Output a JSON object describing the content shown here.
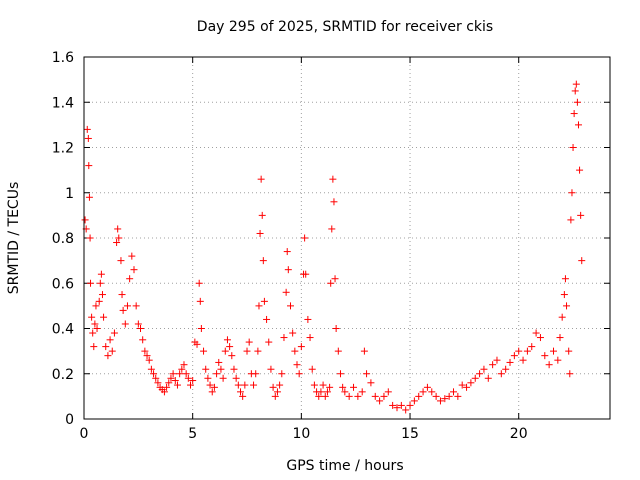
{
  "chart_data": {
    "type": "scatter",
    "title": "Day 295 of 2025, SRMTID for receiver ckis",
    "xlabel": "GPS time / hours",
    "ylabel": "SRMTID / TECUs",
    "xlim": [
      0,
      24.2
    ],
    "ylim": [
      0,
      1.6
    ],
    "xticks": [
      0,
      5,
      10,
      15,
      20
    ],
    "xtick_labels": [
      "0",
      "5",
      "10",
      "15",
      "20"
    ],
    "yticks": [
      0,
      0.2,
      0.4,
      0.6,
      0.8,
      1.0,
      1.2,
      1.4,
      1.6
    ],
    "ytick_labels": [
      "0",
      "0.2",
      "0.4",
      "0.6",
      "0.8",
      "1",
      "1.2",
      "1.4",
      "1.6"
    ],
    "grid": true,
    "marker": "+",
    "color": "#ff0000",
    "series": [
      {
        "name": "SRMTID",
        "points": [
          [
            0.05,
            0.88
          ],
          [
            0.1,
            0.84
          ],
          [
            0.15,
            1.28
          ],
          [
            0.2,
            1.24
          ],
          [
            0.22,
            1.12
          ],
          [
            0.25,
            0.98
          ],
          [
            0.28,
            0.8
          ],
          [
            0.3,
            0.6
          ],
          [
            0.35,
            0.45
          ],
          [
            0.4,
            0.38
          ],
          [
            0.45,
            0.32
          ],
          [
            0.5,
            0.42
          ],
          [
            0.55,
            0.5
          ],
          [
            0.6,
            0.4
          ],
          [
            0.7,
            0.52
          ],
          [
            0.75,
            0.6
          ],
          [
            0.8,
            0.64
          ],
          [
            0.85,
            0.55
          ],
          [
            0.9,
            0.45
          ],
          [
            1.0,
            0.32
          ],
          [
            1.1,
            0.28
          ],
          [
            1.2,
            0.35
          ],
          [
            1.3,
            0.3
          ],
          [
            1.4,
            0.38
          ],
          [
            1.5,
            0.78
          ],
          [
            1.55,
            0.84
          ],
          [
            1.6,
            0.8
          ],
          [
            1.7,
            0.7
          ],
          [
            1.75,
            0.55
          ],
          [
            1.8,
            0.48
          ],
          [
            1.9,
            0.42
          ],
          [
            2.0,
            0.5
          ],
          [
            2.1,
            0.62
          ],
          [
            2.2,
            0.72
          ],
          [
            2.3,
            0.66
          ],
          [
            2.4,
            0.5
          ],
          [
            2.5,
            0.42
          ],
          [
            2.6,
            0.4
          ],
          [
            2.7,
            0.35
          ],
          [
            2.8,
            0.3
          ],
          [
            2.9,
            0.28
          ],
          [
            3.0,
            0.26
          ],
          [
            3.1,
            0.22
          ],
          [
            3.2,
            0.2
          ],
          [
            3.3,
            0.18
          ],
          [
            3.4,
            0.16
          ],
          [
            3.5,
            0.14
          ],
          [
            3.6,
            0.13
          ],
          [
            3.7,
            0.12
          ],
          [
            3.8,
            0.14
          ],
          [
            3.9,
            0.16
          ],
          [
            4.0,
            0.18
          ],
          [
            4.1,
            0.2
          ],
          [
            4.2,
            0.17
          ],
          [
            4.3,
            0.15
          ],
          [
            4.4,
            0.2
          ],
          [
            4.5,
            0.22
          ],
          [
            4.6,
            0.24
          ],
          [
            4.7,
            0.2
          ],
          [
            4.8,
            0.18
          ],
          [
            4.9,
            0.15
          ],
          [
            5.0,
            0.17
          ],
          [
            5.1,
            0.34
          ],
          [
            5.2,
            0.33
          ],
          [
            5.3,
            0.6
          ],
          [
            5.35,
            0.52
          ],
          [
            5.4,
            0.4
          ],
          [
            5.5,
            0.3
          ],
          [
            5.6,
            0.22
          ],
          [
            5.7,
            0.18
          ],
          [
            5.8,
            0.15
          ],
          [
            5.9,
            0.12
          ],
          [
            6.0,
            0.14
          ],
          [
            6.1,
            0.2
          ],
          [
            6.2,
            0.25
          ],
          [
            6.3,
            0.22
          ],
          [
            6.4,
            0.18
          ],
          [
            6.5,
            0.3
          ],
          [
            6.6,
            0.35
          ],
          [
            6.7,
            0.32
          ],
          [
            6.8,
            0.28
          ],
          [
            6.9,
            0.22
          ],
          [
            7.0,
            0.18
          ],
          [
            7.1,
            0.15
          ],
          [
            7.2,
            0.12
          ],
          [
            7.3,
            0.1
          ],
          [
            7.4,
            0.15
          ],
          [
            7.5,
            0.3
          ],
          [
            7.6,
            0.34
          ],
          [
            7.7,
            0.2
          ],
          [
            7.8,
            0.15
          ],
          [
            7.9,
            0.2
          ],
          [
            8.0,
            0.3
          ],
          [
            8.05,
            0.5
          ],
          [
            8.1,
            0.82
          ],
          [
            8.15,
            1.06
          ],
          [
            8.2,
            0.9
          ],
          [
            8.25,
            0.7
          ],
          [
            8.3,
            0.52
          ],
          [
            8.4,
            0.44
          ],
          [
            8.5,
            0.34
          ],
          [
            8.6,
            0.22
          ],
          [
            8.7,
            0.14
          ],
          [
            8.8,
            0.1
          ],
          [
            8.9,
            0.12
          ],
          [
            9.0,
            0.15
          ],
          [
            9.1,
            0.2
          ],
          [
            9.2,
            0.36
          ],
          [
            9.3,
            0.56
          ],
          [
            9.35,
            0.74
          ],
          [
            9.4,
            0.66
          ],
          [
            9.5,
            0.5
          ],
          [
            9.6,
            0.38
          ],
          [
            9.7,
            0.3
          ],
          [
            9.8,
            0.24
          ],
          [
            9.9,
            0.2
          ],
          [
            10.0,
            0.32
          ],
          [
            10.1,
            0.64
          ],
          [
            10.15,
            0.8
          ],
          [
            10.2,
            0.64
          ],
          [
            10.3,
            0.44
          ],
          [
            10.4,
            0.36
          ],
          [
            10.5,
            0.22
          ],
          [
            10.6,
            0.15
          ],
          [
            10.7,
            0.12
          ],
          [
            10.8,
            0.1
          ],
          [
            10.9,
            0.12
          ],
          [
            11.0,
            0.15
          ],
          [
            11.1,
            0.1
          ],
          [
            11.2,
            0.12
          ],
          [
            11.3,
            0.14
          ],
          [
            11.35,
            0.6
          ],
          [
            11.4,
            0.84
          ],
          [
            11.45,
            1.06
          ],
          [
            11.5,
            0.96
          ],
          [
            11.55,
            0.62
          ],
          [
            11.6,
            0.4
          ],
          [
            11.7,
            0.3
          ],
          [
            11.8,
            0.2
          ],
          [
            11.9,
            0.14
          ],
          [
            12.0,
            0.12
          ],
          [
            12.2,
            0.1
          ],
          [
            12.4,
            0.14
          ],
          [
            12.6,
            0.1
          ],
          [
            12.8,
            0.12
          ],
          [
            12.9,
            0.3
          ],
          [
            13.0,
            0.2
          ],
          [
            13.2,
            0.16
          ],
          [
            13.4,
            0.1
          ],
          [
            13.6,
            0.08
          ],
          [
            13.8,
            0.1
          ],
          [
            14.0,
            0.12
          ],
          [
            14.2,
            0.06
          ],
          [
            14.4,
            0.05
          ],
          [
            14.6,
            0.06
          ],
          [
            14.8,
            0.04
          ],
          [
            15.0,
            0.06
          ],
          [
            15.2,
            0.08
          ],
          [
            15.4,
            0.1
          ],
          [
            15.6,
            0.12
          ],
          [
            15.8,
            0.14
          ],
          [
            16.0,
            0.12
          ],
          [
            16.2,
            0.1
          ],
          [
            16.4,
            0.08
          ],
          [
            16.6,
            0.09
          ],
          [
            16.8,
            0.1
          ],
          [
            17.0,
            0.12
          ],
          [
            17.2,
            0.1
          ],
          [
            17.4,
            0.15
          ],
          [
            17.6,
            0.14
          ],
          [
            17.8,
            0.16
          ],
          [
            18.0,
            0.18
          ],
          [
            18.2,
            0.2
          ],
          [
            18.4,
            0.22
          ],
          [
            18.6,
            0.18
          ],
          [
            18.8,
            0.24
          ],
          [
            19.0,
            0.26
          ],
          [
            19.2,
            0.2
          ],
          [
            19.4,
            0.22
          ],
          [
            19.6,
            0.25
          ],
          [
            19.8,
            0.28
          ],
          [
            20.0,
            0.3
          ],
          [
            20.2,
            0.26
          ],
          [
            20.4,
            0.3
          ],
          [
            20.6,
            0.32
          ],
          [
            20.8,
            0.38
          ],
          [
            21.0,
            0.36
          ],
          [
            21.2,
            0.28
          ],
          [
            21.4,
            0.24
          ],
          [
            21.6,
            0.3
          ],
          [
            21.8,
            0.26
          ],
          [
            21.9,
            0.36
          ],
          [
            22.0,
            0.45
          ],
          [
            22.1,
            0.55
          ],
          [
            22.15,
            0.62
          ],
          [
            22.2,
            0.5
          ],
          [
            22.3,
            0.3
          ],
          [
            22.35,
            0.2
          ],
          [
            22.4,
            0.88
          ],
          [
            22.45,
            1.0
          ],
          [
            22.5,
            1.2
          ],
          [
            22.55,
            1.35
          ],
          [
            22.6,
            1.45
          ],
          [
            22.65,
            1.48
          ],
          [
            22.7,
            1.4
          ],
          [
            22.75,
            1.3
          ],
          [
            22.8,
            1.1
          ],
          [
            22.85,
            0.9
          ],
          [
            22.9,
            0.7
          ]
        ]
      }
    ]
  }
}
